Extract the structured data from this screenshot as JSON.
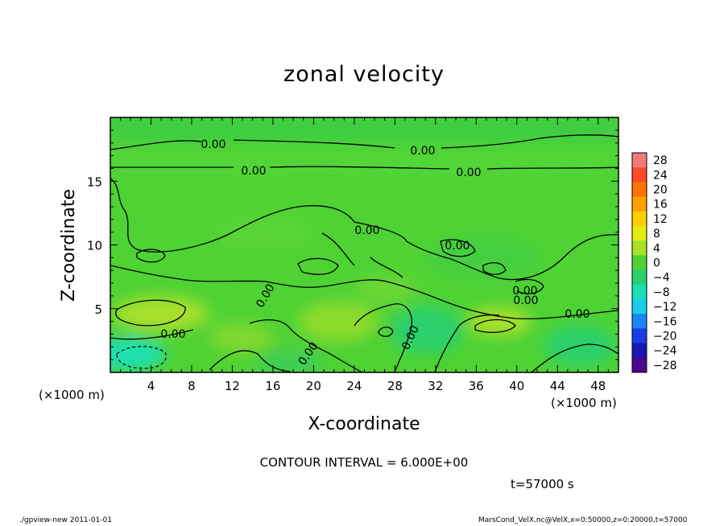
{
  "chart_data": {
    "type": "heatmap",
    "title": "zonal velocity",
    "xlabel": "X-coordinate",
    "ylabel": "Z-coordinate",
    "x_unit": "(×1000 m)",
    "y_unit": "(×1000 m)",
    "xlim": [
      0,
      50
    ],
    "ylim": [
      0,
      20
    ],
    "x_ticks": [
      4,
      8,
      12,
      16,
      20,
      24,
      28,
      32,
      36,
      40,
      44,
      48
    ],
    "y_ticks": [
      5,
      10,
      15
    ],
    "colorbar": {
      "levels": [
        28,
        24,
        20,
        16,
        12,
        8,
        4,
        0,
        -4,
        -8,
        -12,
        -16,
        -20,
        -24,
        -28
      ],
      "colors": [
        "#f07a7a",
        "#ff4a2a",
        "#ff7400",
        "#ffa000",
        "#ffd000",
        "#e4ec10",
        "#a8e02a",
        "#4ed234",
        "#2ad06c",
        "#1ae0b4",
        "#1acde8",
        "#1a86f2",
        "#1a3ee6",
        "#1a16b0",
        "#4a0890"
      ]
    },
    "contour_labels": [
      "0.00",
      "0.00",
      "0.00",
      "0.00",
      "0.00",
      "0.00",
      "0.00",
      "0.00",
      "0.00",
      "0.00",
      "0.00",
      "0.00",
      "0.00"
    ],
    "contour_interval_text": "CONTOUR INTERVAL = 6.000E+00",
    "time_text": "t=57000 s"
  },
  "footer": {
    "left": "./gpview-new  2011-01-01",
    "right": "MarsCond_VelX.nc@VelX,x=0:50000,z=0:20000,t=57000"
  }
}
